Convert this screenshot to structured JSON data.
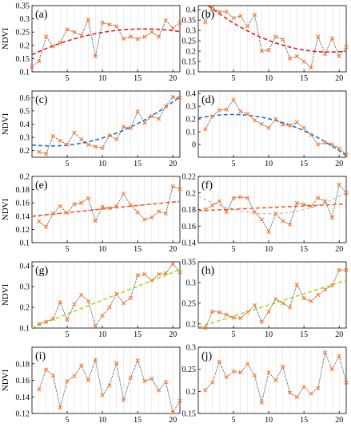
{
  "figure": {
    "ylabel": "NDVI"
  },
  "chart_data": [
    {
      "type": "line",
      "panel": "(a)",
      "label": "(a)",
      "ylabel": "NDVI",
      "xlim": [
        0,
        21
      ],
      "ylim": [
        0.1,
        0.35
      ],
      "xticks": [
        "5",
        "10",
        "15",
        "20"
      ],
      "yticks": [
        "0.1",
        "0.15",
        "0.2",
        "0.25",
        "0.3",
        "0.35"
      ],
      "x": [
        0,
        1,
        2,
        3,
        4,
        5,
        6,
        7,
        8,
        9,
        10,
        11,
        12,
        13,
        14,
        15,
        16,
        17,
        18,
        19,
        20,
        21
      ],
      "values": [
        0.12,
        0.14,
        0.233,
        0.196,
        0.21,
        0.26,
        0.25,
        0.237,
        0.297,
        0.158,
        0.286,
        0.278,
        0.272,
        0.225,
        0.233,
        0.224,
        0.232,
        0.25,
        0.232,
        0.294,
        0.265,
        0.285
      ],
      "trend": {
        "kind": "polynomial",
        "degree": 2,
        "color": "#e02020"
      }
    },
    {
      "type": "line",
      "panel": "(b)",
      "label": "(b)",
      "ylabel": "",
      "xlim": [
        0,
        21
      ],
      "ylim": [
        0.1,
        0.42
      ],
      "xticks": [
        "5",
        "10",
        "15",
        "20"
      ],
      "yticks": [
        "0.1",
        "0.15",
        "0.2",
        "0.25",
        "0.3",
        "0.35",
        "0.4"
      ],
      "x": [
        1,
        2,
        3,
        4,
        5,
        6,
        7,
        8,
        9,
        10,
        11,
        12,
        13,
        14,
        15,
        16,
        17,
        18,
        19,
        20,
        21
      ],
      "values": [
        0.34,
        0.41,
        0.39,
        0.39,
        0.36,
        0.37,
        0.32,
        0.376,
        0.2,
        0.205,
        0.27,
        0.256,
        0.165,
        0.175,
        0.15,
        0.12,
        0.27,
        0.186,
        0.262,
        0.175,
        0.22
      ],
      "trend": {
        "kind": "polynomial",
        "degree": 2,
        "color": "#e02020"
      }
    },
    {
      "type": "line",
      "panel": "(c)",
      "label": "(c)",
      "ylabel": "NDVI",
      "xlim": [
        0,
        21
      ],
      "ylim": [
        0.15,
        0.65
      ],
      "xticks": [
        "5",
        "10",
        "15",
        "20"
      ],
      "yticks": [
        "0.2",
        "0.3",
        "0.4",
        "0.5",
        "0.6"
      ],
      "x": [
        1,
        2,
        3,
        4,
        5,
        6,
        7,
        8,
        9,
        10,
        11,
        12,
        13,
        14,
        15,
        16,
        17,
        18,
        19,
        20,
        21
      ],
      "values": [
        0.19,
        0.175,
        0.31,
        0.275,
        0.245,
        0.335,
        0.285,
        0.245,
        0.23,
        0.22,
        0.315,
        0.285,
        0.38,
        0.37,
        0.495,
        0.41,
        0.46,
        0.44,
        0.535,
        0.605,
        0.6
      ],
      "trend": {
        "kind": "polynomial",
        "degree": 2,
        "color": "#2070d0"
      }
    },
    {
      "type": "line",
      "panel": "(d)",
      "label": "(d)",
      "ylabel": "",
      "xlim": [
        0,
        21
      ],
      "ylim": [
        -0.1,
        0.42
      ],
      "xticks": [
        "5",
        "10",
        "15",
        "20"
      ],
      "yticks": [
        "0",
        "0.1",
        "0.2",
        "0.3",
        "0.4"
      ],
      "x": [
        1,
        2,
        3,
        4,
        5,
        6,
        7,
        8,
        9,
        10,
        11,
        12,
        13,
        14,
        15,
        16,
        17,
        18,
        19,
        20,
        21
      ],
      "values": [
        0.12,
        0.22,
        0.27,
        0.275,
        0.35,
        0.26,
        0.24,
        0.19,
        0.16,
        0.13,
        0.2,
        0.155,
        0.15,
        0.175,
        0.13,
        0.075,
        0.0,
        0.015,
        0.0,
        -0.03,
        -0.08
      ],
      "trend": {
        "kind": "polynomial",
        "degree": 2,
        "color": "#2070d0"
      }
    },
    {
      "type": "line",
      "panel": "(e)",
      "label": "(e)",
      "ylabel": "NDVI",
      "xlim": [
        0,
        21
      ],
      "ylim": [
        0.1,
        0.2
      ],
      "xticks": [
        "5",
        "10",
        "15",
        "20"
      ],
      "yticks": [
        "0.1",
        "0.12",
        "0.14",
        "0.16",
        "0.18",
        "0.2"
      ],
      "x": [
        1,
        2,
        3,
        4,
        5,
        6,
        7,
        8,
        9,
        10,
        11,
        12,
        13,
        14,
        15,
        16,
        17,
        18,
        19,
        20,
        21
      ],
      "values": [
        0.132,
        0.124,
        0.144,
        0.155,
        0.145,
        0.158,
        0.16,
        0.167,
        0.133,
        0.154,
        0.152,
        0.155,
        0.174,
        0.157,
        0.146,
        0.135,
        0.138,
        0.147,
        0.144,
        0.185,
        0.181
      ],
      "trend": {
        "kind": "linear",
        "color": "#f06030"
      },
      "trend2": {
        "kind": "polynomial",
        "degree": 2,
        "color": "#b0b0b0"
      }
    },
    {
      "type": "line",
      "panel": "(f)",
      "label": "(f)",
      "ylabel": "",
      "xlim": [
        0,
        21
      ],
      "ylim": [
        0.14,
        0.22
      ],
      "xticks": [
        "5",
        "10",
        "15",
        "20"
      ],
      "yticks": [
        "0.14",
        "0.16",
        "0.18",
        "0.2",
        "0.22"
      ],
      "x": [
        1,
        2,
        3,
        4,
        5,
        6,
        7,
        8,
        9,
        10,
        11,
        12,
        13,
        14,
        15,
        16,
        17,
        18,
        19,
        20,
        21
      ],
      "values": [
        0.18,
        0.185,
        0.19,
        0.177,
        0.194,
        0.195,
        0.194,
        0.177,
        0.168,
        0.153,
        0.175,
        0.166,
        0.162,
        0.188,
        0.186,
        0.184,
        0.194,
        0.19,
        0.17,
        0.21,
        0.2
      ],
      "trend": {
        "kind": "linear",
        "color": "#f06030"
      },
      "trend2": {
        "kind": "polynomial",
        "degree": 2,
        "color": "#b0b0b0"
      }
    },
    {
      "type": "line",
      "panel": "(g)",
      "label": "(g)",
      "ylabel": "NDVI",
      "xlim": [
        0,
        21
      ],
      "ylim": [
        0.1,
        0.42
      ],
      "xticks": [
        "5",
        "10",
        "15",
        "20"
      ],
      "yticks": [
        "0.1",
        "0.2",
        "0.3",
        "0.4"
      ],
      "x": [
        1,
        2,
        3,
        4,
        5,
        6,
        7,
        8,
        9,
        10,
        11,
        12,
        13,
        14,
        15,
        16,
        17,
        18,
        19,
        20,
        21
      ],
      "values": [
        0.12,
        0.13,
        0.145,
        0.225,
        0.14,
        0.215,
        0.26,
        0.23,
        0.11,
        0.16,
        0.2,
        0.265,
        0.22,
        0.245,
        0.355,
        0.36,
        0.33,
        0.36,
        0.365,
        0.41,
        0.37
      ],
      "trend": {
        "kind": "linear",
        "color": "#a0e020"
      }
    },
    {
      "type": "line",
      "panel": "(h)",
      "label": "(h)",
      "ylabel": "",
      "xlim": [
        0,
        21
      ],
      "ylim": [
        0.19,
        0.35
      ],
      "xticks": [
        "5",
        "10",
        "15",
        "20"
      ],
      "yticks": [
        "0.2",
        "0.25",
        "0.3",
        "0.35"
      ],
      "x": [
        1,
        2,
        3,
        4,
        5,
        6,
        7,
        8,
        9,
        10,
        11,
        12,
        13,
        14,
        15,
        16,
        17,
        18,
        19,
        20,
        21
      ],
      "values": [
        0.19,
        0.23,
        0.228,
        0.222,
        0.215,
        0.214,
        0.228,
        0.245,
        0.205,
        0.23,
        0.26,
        0.25,
        0.24,
        0.295,
        0.262,
        0.255,
        0.27,
        0.283,
        0.293,
        0.33,
        0.33
      ],
      "trend": {
        "kind": "linear",
        "color": "#a0e020"
      }
    },
    {
      "type": "line",
      "panel": "(i)",
      "label": "(i)",
      "ylabel": "NDVI",
      "xlim": [
        0,
        21
      ],
      "ylim": [
        0.12,
        0.2
      ],
      "xticks": [
        "5",
        "10",
        "15",
        "20"
      ],
      "yticks": [
        "0.12",
        "0.14",
        "0.16",
        "0.18"
      ],
      "x": [
        1,
        2,
        3,
        4,
        5,
        6,
        7,
        8,
        9,
        10,
        11,
        12,
        13,
        14,
        15,
        16,
        17,
        18,
        19,
        20,
        21
      ],
      "values": [
        0.149,
        0.173,
        0.166,
        0.127,
        0.159,
        0.165,
        0.178,
        0.16,
        0.185,
        0.142,
        0.154,
        0.181,
        0.136,
        0.163,
        0.184,
        0.159,
        0.162,
        0.148,
        0.158,
        0.121,
        0.135
      ]
    },
    {
      "type": "line",
      "panel": "(j)",
      "label": "(j)",
      "ylabel": "",
      "xlim": [
        0,
        21
      ],
      "ylim": [
        0.15,
        0.3
      ],
      "xticks": [
        "5",
        "10",
        "15",
        "20"
      ],
      "yticks": [
        "0.15",
        "0.2",
        "0.25",
        "0.3"
      ],
      "x": [
        1,
        2,
        3,
        4,
        5,
        6,
        7,
        8,
        9,
        10,
        11,
        12,
        13,
        14,
        15,
        16,
        17,
        18,
        19,
        20,
        21
      ],
      "values": [
        0.203,
        0.22,
        0.267,
        0.232,
        0.245,
        0.243,
        0.262,
        0.236,
        0.175,
        0.243,
        0.225,
        0.256,
        0.197,
        0.187,
        0.21,
        0.195,
        0.207,
        0.288,
        0.25,
        0.28,
        0.22
      ]
    }
  ]
}
